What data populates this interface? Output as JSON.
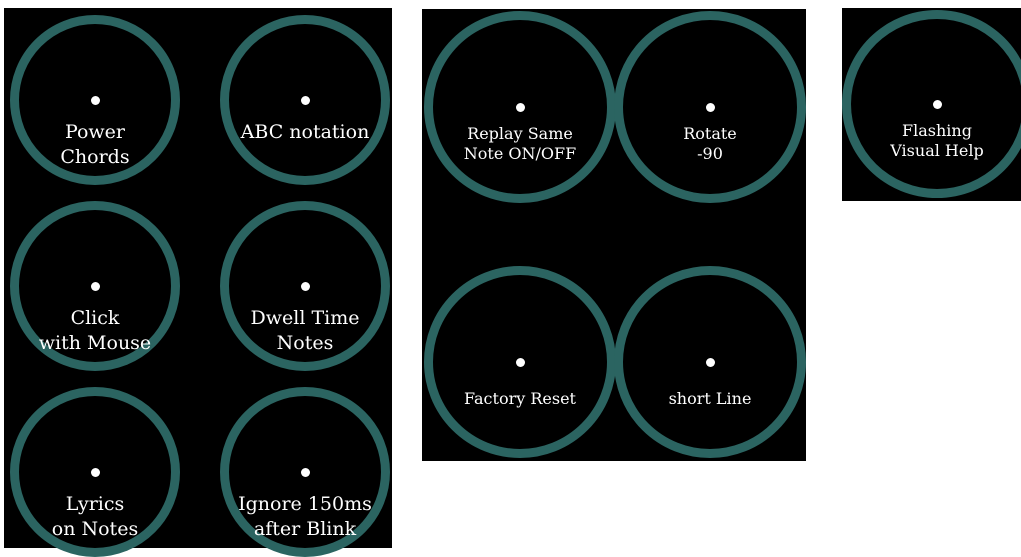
{
  "panel_a": {
    "buttons": [
      {
        "lines": [
          "Power",
          "Chords"
        ]
      },
      {
        "lines": [
          "ABC notation"
        ]
      },
      {
        "lines": [
          "Click",
          "with Mouse"
        ]
      },
      {
        "lines": [
          "Dwell Time",
          "Notes"
        ]
      },
      {
        "lines": [
          "Lyrics",
          "on Notes"
        ]
      },
      {
        "lines": [
          "Ignore 150ms",
          "after Blink"
        ]
      }
    ]
  },
  "panel_b": {
    "buttons": [
      {
        "lines": [
          "Replay Same",
          "Note ON/OFF"
        ]
      },
      {
        "lines": [
          "Rotate",
          "-90"
        ]
      },
      {
        "lines": [
          "Factory Reset"
        ]
      },
      {
        "lines": [
          "short Line"
        ]
      }
    ]
  },
  "panel_c": {
    "buttons": [
      {
        "lines": [
          "Flashing",
          "Visual Help"
        ]
      }
    ]
  },
  "colors": {
    "panel_bg": "#000000",
    "ring": "#2b6461",
    "text": "#ffffff",
    "page_bg": "#ffffff"
  }
}
